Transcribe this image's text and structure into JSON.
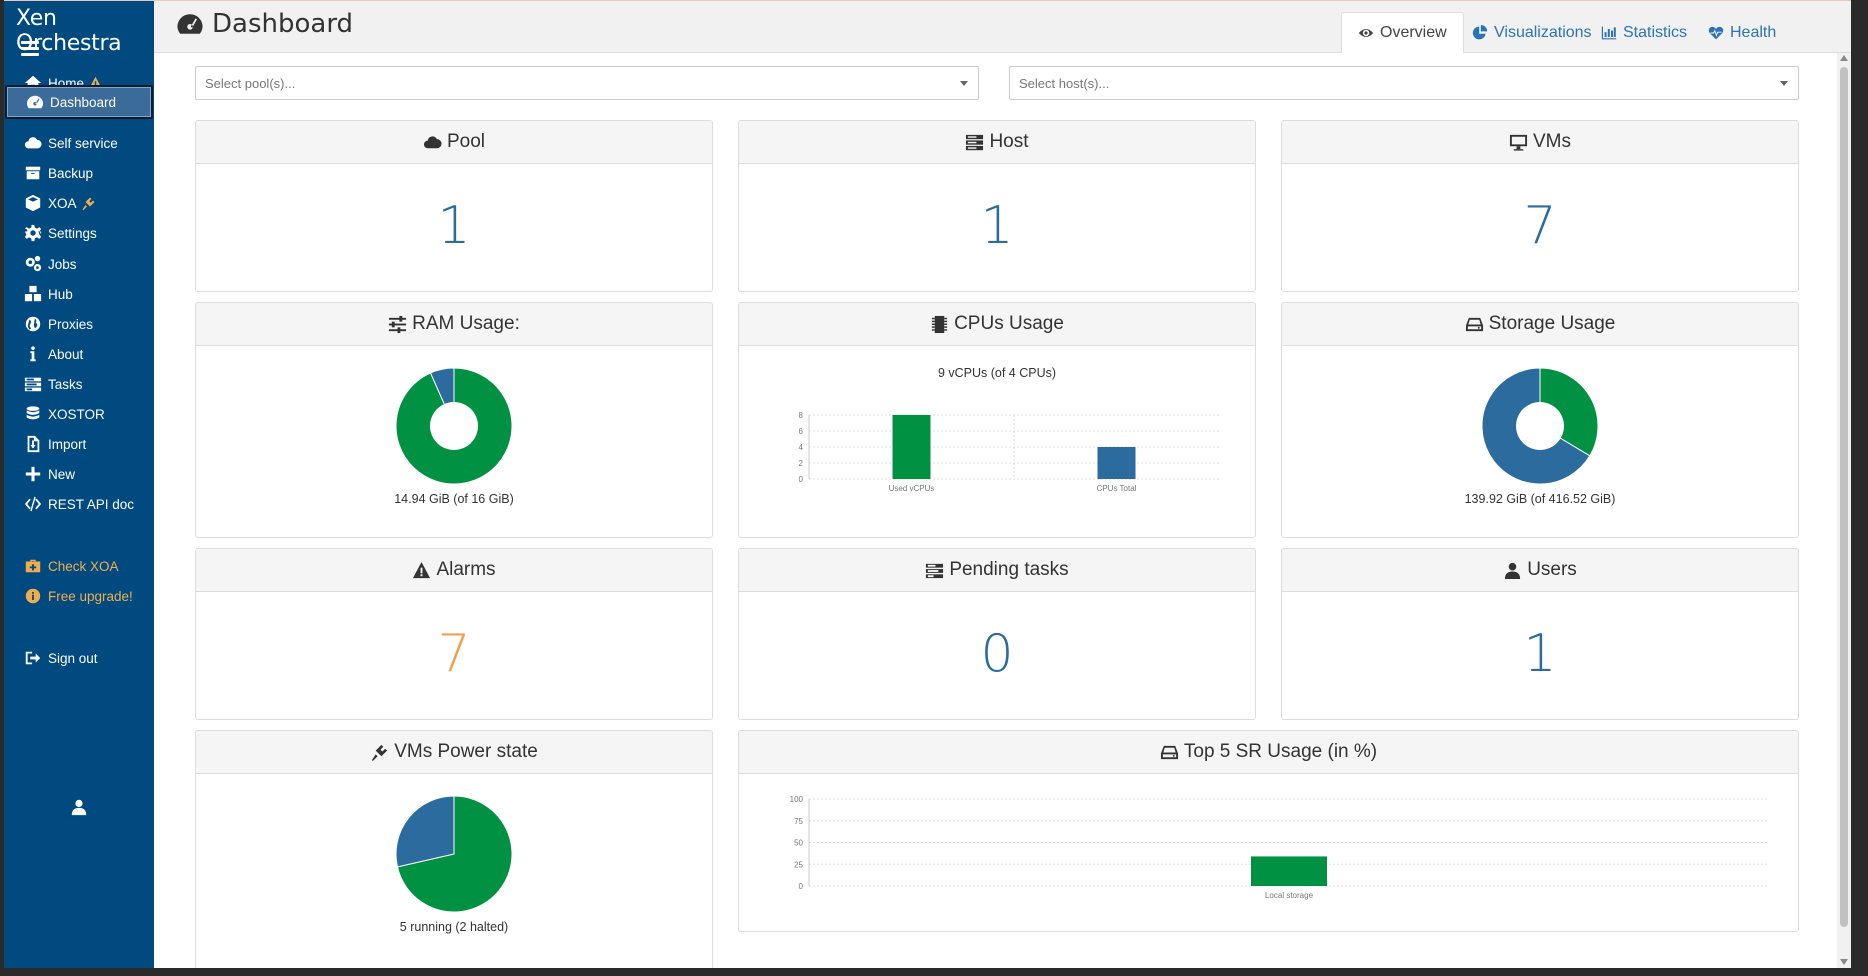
{
  "app": {
    "brand": "Xen Orchestra"
  },
  "sidebar": {
    "items": [
      {
        "label": "Home",
        "icon": "home-icon"
      },
      {
        "label": "Dashboard",
        "icon": "dashboard-icon"
      },
      {
        "label": "Self service",
        "icon": "cloud-icon"
      },
      {
        "label": "Backup",
        "icon": "archive-icon"
      },
      {
        "label": "XOA",
        "icon": "cube-icon"
      },
      {
        "label": "Settings",
        "icon": "gear-icon"
      },
      {
        "label": "Jobs",
        "icon": "gears-icon"
      },
      {
        "label": "Hub",
        "icon": "cubes-icon"
      },
      {
        "label": "Proxies",
        "icon": "globe-icon"
      },
      {
        "label": "About",
        "icon": "info-icon"
      },
      {
        "label": "Tasks",
        "icon": "tasks-icon"
      },
      {
        "label": "XOSTOR",
        "icon": "database-icon"
      },
      {
        "label": "Import",
        "icon": "file-import-icon"
      },
      {
        "label": "New",
        "icon": "plus-icon"
      },
      {
        "label": "REST API doc",
        "icon": "code-icon"
      }
    ],
    "check_xoa": "Check XOA",
    "free_upgrade": "Free upgrade!",
    "sign_out": "Sign out",
    "accent_orange": "#f0ad4e",
    "background": "#004a80"
  },
  "header": {
    "title": "Dashboard",
    "tabs": [
      {
        "label": "Overview",
        "icon": "eye-icon"
      },
      {
        "label": "Visualizations",
        "icon": "pie-chart-icon"
      },
      {
        "label": "Statistics",
        "icon": "bar-chart-icon"
      },
      {
        "label": "Health",
        "icon": "heartbeat-icon"
      }
    ]
  },
  "filters": {
    "pool_placeholder": "Select pool(s)...",
    "host_placeholder": "Select host(s)..."
  },
  "cards": {
    "pool": {
      "title": "Pool",
      "value": "1"
    },
    "host": {
      "title": "Host",
      "value": "1"
    },
    "vms": {
      "title": "VMs",
      "value": "7"
    },
    "ram": {
      "title": "RAM Usage:",
      "caption": "14.94 GiB (of 16 GiB)"
    },
    "cpus": {
      "title": "CPUs Usage",
      "caption": "9 vCPUs (of 4 CPUs)"
    },
    "storage": {
      "title": "Storage Usage",
      "caption": "139.92 GiB (of 416.52 GiB)"
    },
    "alarms": {
      "title": "Alarms",
      "value": "7"
    },
    "pending": {
      "title": "Pending tasks",
      "value": "0"
    },
    "users": {
      "title": "Users",
      "value": "1"
    },
    "power": {
      "title": "VMs Power state",
      "caption": "5 running (2 halted)"
    },
    "top_sr": {
      "title": "Top 5 SR Usage (in %)"
    }
  },
  "colors": {
    "green": "#009143",
    "blue": "#2b6b9e",
    "orange": "#f0a04e"
  },
  "chart_data": [
    {
      "type": "pie",
      "title": "RAM Usage:",
      "donut": true,
      "slices": [
        {
          "value": 14.94,
          "color": "#009143"
        },
        {
          "value": 1.06,
          "color": "#2b6b9e"
        }
      ]
    },
    {
      "type": "bar",
      "title": "CPUs Usage",
      "categories": [
        "Used vCPUs",
        "CPUs Total"
      ],
      "values": [
        9,
        4
      ],
      "colors": [
        "#009143",
        "#2b6b9e"
      ],
      "ylim": [
        0,
        8
      ],
      "yticks": [
        0,
        2,
        4,
        6,
        8
      ],
      "grid": true
    },
    {
      "type": "pie",
      "title": "Storage Usage",
      "donut": true,
      "slices": [
        {
          "value": 139.92,
          "color": "#009143"
        },
        {
          "value": 276.6,
          "color": "#2b6b9e"
        }
      ]
    },
    {
      "type": "pie",
      "title": "VMs Power state",
      "donut": false,
      "slices": [
        {
          "value": 5,
          "color": "#009143"
        },
        {
          "value": 2,
          "color": "#2b6b9e"
        }
      ]
    },
    {
      "type": "bar",
      "title": "Top 5 SR Usage (in %)",
      "categories": [
        "Local storage"
      ],
      "values": [
        34
      ],
      "colors": [
        "#009143"
      ],
      "ylim": [
        0,
        100
      ],
      "yticks": [
        0,
        25,
        50,
        75,
        100
      ],
      "grid": true
    }
  ]
}
